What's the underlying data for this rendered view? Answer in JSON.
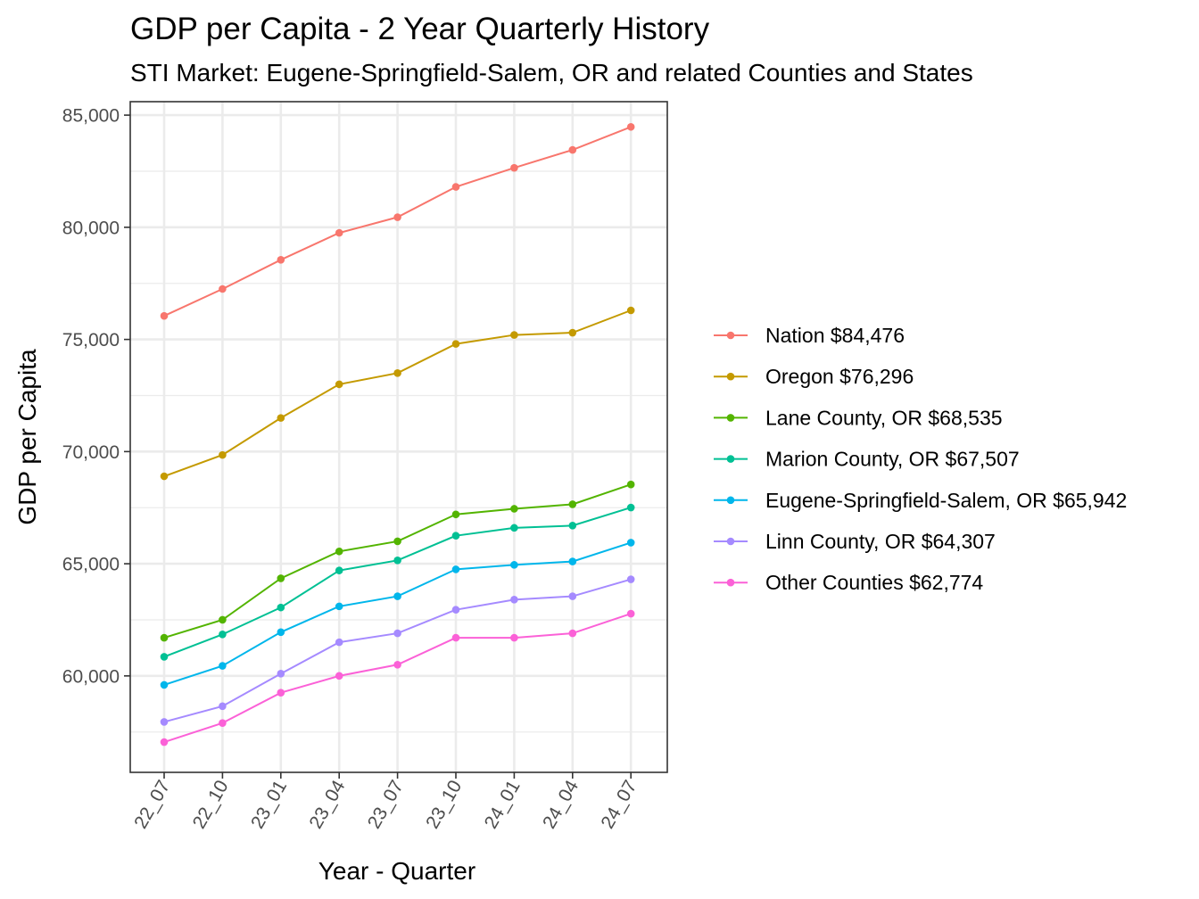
{
  "chart_data": {
    "type": "line",
    "title": "GDP per Capita - 2 Year Quarterly History",
    "subtitle": "STI Market: Eugene-Springfield-Salem, OR and related Counties and States",
    "xlabel": "Year - Quarter",
    "ylabel": "GDP per Capita",
    "categories": [
      "22_07",
      "22_10",
      "23_01",
      "23_04",
      "23_07",
      "23_10",
      "24_01",
      "24_04",
      "24_07"
    ],
    "ylim": [
      55700,
      85600
    ],
    "yticks": [
      60000,
      65000,
      70000,
      75000,
      80000,
      85000
    ],
    "ytick_labels": [
      "60,000",
      "65,000",
      "70,000",
      "75,000",
      "80,000",
      "85,000"
    ],
    "grid": true,
    "legend_position": "right",
    "series": [
      {
        "name": "Nation $84,476",
        "color": "#F8766D",
        "values": [
          76050,
          77250,
          78550,
          79750,
          80450,
          81800,
          82650,
          83450,
          84476
        ]
      },
      {
        "name": "Oregon $76,296",
        "color": "#C49A00",
        "values": [
          68900,
          69850,
          71500,
          73000,
          73500,
          74800,
          75200,
          75300,
          76296
        ]
      },
      {
        "name": "Lane County, OR $68,535",
        "color": "#53B400",
        "values": [
          61700,
          62500,
          64350,
          65550,
          66000,
          67200,
          67450,
          67650,
          68535
        ]
      },
      {
        "name": "Marion County, OR $67,507",
        "color": "#00C094",
        "values": [
          60850,
          61850,
          63050,
          64700,
          65150,
          66250,
          66600,
          66700,
          67507
        ]
      },
      {
        "name": "Eugene-Springfield-Salem, OR $65,942",
        "color": "#00B6EB",
        "values": [
          59600,
          60450,
          61950,
          63100,
          63550,
          64750,
          64950,
          65100,
          65942
        ]
      },
      {
        "name": "Linn County, OR $64,307",
        "color": "#A58AFF",
        "values": [
          57950,
          58650,
          60100,
          61500,
          61900,
          62950,
          63400,
          63550,
          64307
        ]
      },
      {
        "name": "Other Counties $62,774",
        "color": "#FB61D7",
        "values": [
          57050,
          57900,
          59250,
          60000,
          60500,
          61700,
          61700,
          61900,
          62774
        ]
      }
    ]
  }
}
